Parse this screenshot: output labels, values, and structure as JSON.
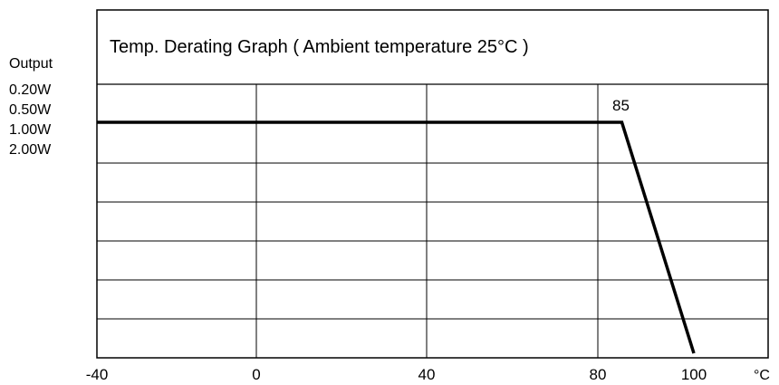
{
  "chart_data": {
    "type": "line",
    "title": "Temp. Derating Graph ( Ambient temperature 25°C )",
    "ylabel": "Output",
    "y_tick_labels": [
      "0.20W",
      "0.50W",
      "1.00W",
      "2.00W"
    ],
    "x_tick_labels": [
      "-40",
      "0",
      "40",
      "80",
      "100"
    ],
    "x_unit": "°C",
    "xlim": [
      -40,
      100
    ],
    "ylim": [
      0,
      100
    ],
    "grid": true,
    "annotation": "85",
    "series": [
      {
        "x": [
          -40,
          85,
          100
        ],
        "y": [
          100,
          100,
          0
        ]
      }
    ]
  }
}
